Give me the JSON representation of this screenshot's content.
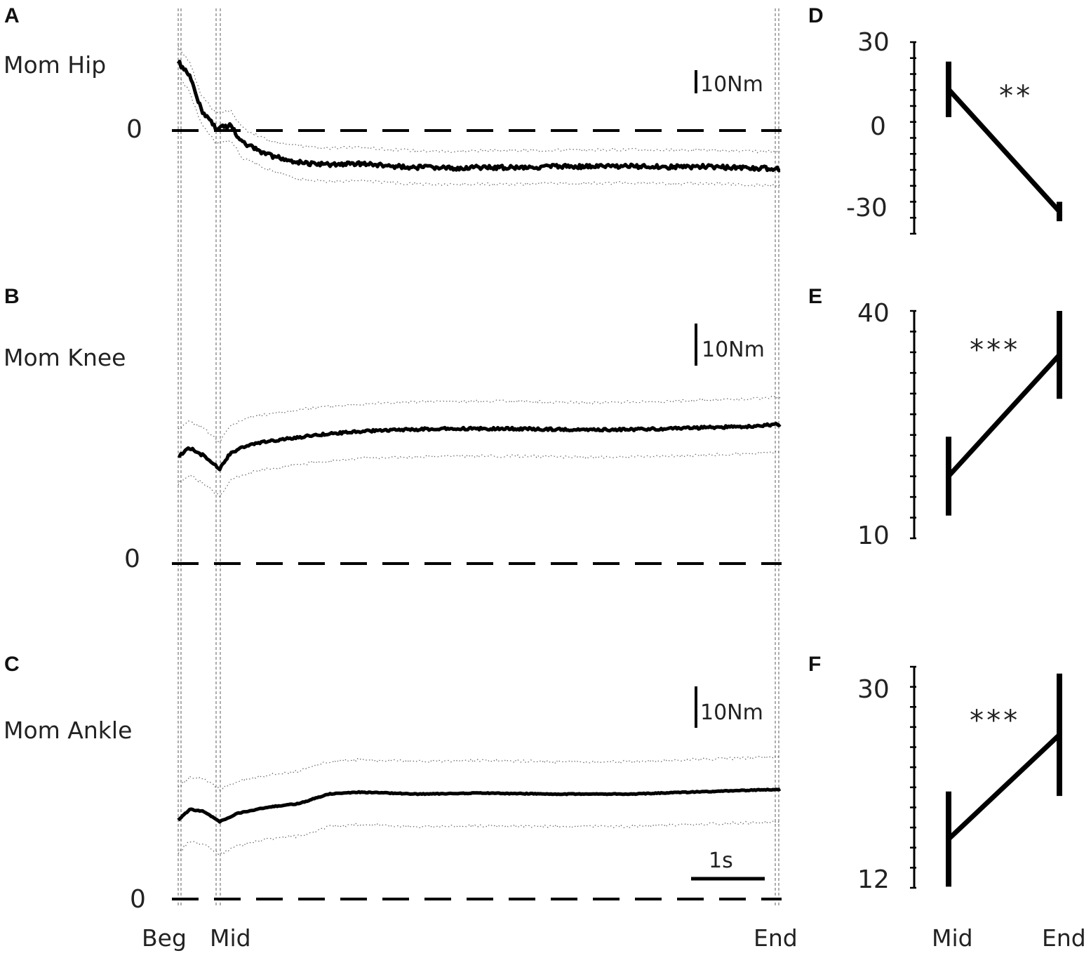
{
  "chart_data": [
    {
      "type": "line",
      "panel": "A",
      "title": "Mom Hip",
      "scale_bar": "10Nm",
      "zero_label": "0",
      "x_markers": [
        "Beg",
        "Mid",
        "End"
      ],
      "series": [
        {
          "values": [
            [
              0,
              28
            ],
            [
              0.15,
              22
            ],
            [
              0.3,
              9
            ],
            [
              0.5,
              1
            ],
            [
              0.7,
              2
            ],
            [
              0.85,
              -5
            ],
            [
              1.2,
              -10
            ],
            [
              1.6,
              -13
            ],
            [
              2.0,
              -14
            ],
            [
              2.4,
              -13.5
            ],
            [
              2.8,
              -14.5
            ],
            [
              3.2,
              -15
            ],
            [
              3.6,
              -15.3
            ],
            [
              4.0,
              -15
            ],
            [
              4.5,
              -15
            ],
            [
              5.0,
              -14.7
            ],
            [
              5.5,
              -14.7
            ],
            [
              6.0,
              -14.5
            ],
            [
              6.5,
              -14.8
            ],
            [
              7.0,
              -14.7
            ],
            [
              7.5,
              -15.2
            ],
            [
              8.0,
              -15.5
            ]
          ]
        }
      ]
    },
    {
      "type": "line",
      "panel": "B",
      "title": "Mom Knee",
      "scale_bar": "10Nm",
      "zero_label": "0",
      "x_markers": [
        "Beg",
        "Mid",
        "End"
      ],
      "series": [
        {
          "values": [
            [
              0,
              25
            ],
            [
              0.15,
              27
            ],
            [
              0.35,
              25
            ],
            [
              0.55,
              22
            ],
            [
              0.7,
              26
            ],
            [
              1.0,
              28
            ],
            [
              1.4,
              29
            ],
            [
              1.8,
              30
            ],
            [
              2.5,
              31
            ],
            [
              3.5,
              31.5
            ],
            [
              4.5,
              31.5
            ],
            [
              5.5,
              31.2
            ],
            [
              6.5,
              31.5
            ],
            [
              7.5,
              32
            ],
            [
              8.0,
              32.5
            ]
          ]
        }
      ]
    },
    {
      "type": "line",
      "panel": "C",
      "title": "Mom Ankle",
      "scale_bar": "10Nm",
      "time_scale_bar": "1s",
      "zero_label": "0",
      "x_markers": [
        "Beg",
        "Mid",
        "End"
      ],
      "series": [
        {
          "values": [
            [
              0,
              16.5
            ],
            [
              0.15,
              18.8
            ],
            [
              0.35,
              18.3
            ],
            [
              0.55,
              16.2
            ],
            [
              0.8,
              18
            ],
            [
              1.2,
              19.3
            ],
            [
              1.6,
              20
            ],
            [
              2.0,
              22
            ],
            [
              2.4,
              22.4
            ],
            [
              3.2,
              22
            ],
            [
              4.0,
              22.2
            ],
            [
              5.0,
              22
            ],
            [
              6.0,
              22
            ],
            [
              7.0,
              22.5
            ],
            [
              8.0,
              23
            ]
          ]
        }
      ]
    },
    {
      "type": "line",
      "panel": "D",
      "categories": [
        "Mid",
        "End"
      ],
      "values": [
        13,
        -31
      ],
      "error": [
        10,
        3.5
      ],
      "y_ticks": [
        "30",
        "0",
        "-30"
      ],
      "ylim": [
        -39,
        30
      ],
      "significance": "**"
    },
    {
      "type": "line",
      "panel": "E",
      "categories": [
        "Mid",
        "End"
      ],
      "values": [
        18.2,
        34.2
      ],
      "error": [
        5.2,
        5.8
      ],
      "y_ticks": [
        "40",
        "10"
      ],
      "ylim": [
        10,
        40
      ],
      "significance": "***"
    },
    {
      "type": "line",
      "panel": "F",
      "categories": [
        "Mid",
        "End"
      ],
      "values": [
        16.3,
        25.5
      ],
      "error": [
        4.2,
        5.4
      ],
      "y_ticks": [
        "30",
        "12"
      ],
      "ylim": [
        12,
        31.5
      ],
      "significance": "***"
    }
  ]
}
